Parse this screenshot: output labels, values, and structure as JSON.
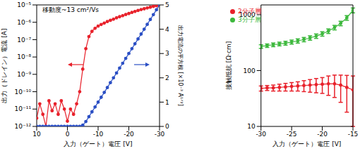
{
  "chart_data": [
    {
      "type": "line",
      "annotation": "移動度~13 cm²/Vs",
      "x_label": "入力（ゲート）電圧 [V]",
      "y_label": "出力（ドレイン）電流 [A]",
      "y2_label": "出力電流の平方根 [×10⁻³ A¹ᐟ²]",
      "log": "y",
      "x": [
        10,
        9,
        8,
        7,
        6,
        5,
        4,
        3,
        2,
        1,
        0,
        -1,
        -2,
        -3,
        -4,
        -5,
        -6,
        -7,
        -8,
        -9,
        -10,
        -11,
        -12,
        -13,
        -14,
        -15,
        -16,
        -17,
        -18,
        -19,
        -20,
        -21,
        -22,
        -23,
        -24,
        -25,
        -26,
        -27,
        -28,
        -29,
        -30
      ],
      "xlim": [
        10,
        -30
      ],
      "xticks": [
        10,
        0,
        -10,
        -20,
        -30
      ],
      "ylim": [
        1e-12,
        1e-05
      ],
      "yticks": [
        {
          "value": 1e-12,
          "label": "10⁻¹²"
        },
        {
          "value": 1e-11,
          "label": "10⁻¹¹"
        },
        {
          "value": 1e-10,
          "label": "10⁻¹⁰"
        },
        {
          "value": 1e-09,
          "label": "10⁻⁹"
        },
        {
          "value": 1e-08,
          "label": "10⁻⁸"
        },
        {
          "value": 1e-07,
          "label": "10⁻⁷"
        },
        {
          "value": 1e-06,
          "label": "10⁻⁶"
        },
        {
          "value": 1e-05,
          "label": "10⁻⁵"
        }
      ],
      "y2lim": [
        0,
        5
      ],
      "y2ticks": [
        0,
        1,
        2,
        3,
        4,
        5
      ],
      "series": [
        {
          "color": "#e8212b",
          "marker": "circle",
          "line_style": "solid",
          "values": [
            3e-12,
            2e-11,
            5e-12,
            1e-12,
            3e-11,
            8e-12,
            2e-11,
            5e-12,
            3e-11,
            1e-11,
            2e-12,
            1e-11,
            5e-12,
            2e-11,
            1e-10,
            2e-09,
            3e-08,
            1.5e-07,
            3e-07,
            4.5e-07,
            6e-07,
            7.5e-07,
            9e-07,
            1.1e-06,
            1.3e-06,
            1.5e-06,
            1.8e-06,
            2.1e-06,
            2.4e-06,
            2.8e-06,
            3.2e-06,
            3.7e-06,
            4.2e-06,
            4.8e-06,
            5.4e-06,
            6e-06,
            6.7e-06,
            7.4e-06,
            8.2e-06,
            9e-06,
            1e-05
          ]
        },
        {
          "color": "#2b4fc4",
          "marker": "circle",
          "line_style": "solid",
          "axis": "y2",
          "values": [
            0,
            0,
            0,
            0,
            0,
            0,
            0,
            0,
            0,
            0,
            0,
            0,
            0,
            0,
            0,
            0.05,
            0.2,
            0.4,
            0.6,
            0.8,
            1.0,
            1.2,
            1.4,
            1.6,
            1.8,
            2.0,
            2.2,
            2.4,
            2.6,
            2.8,
            3.0,
            3.2,
            3.4,
            3.6,
            3.8,
            4.0,
            4.2,
            4.4,
            4.6,
            4.8,
            5.0
          ]
        }
      ]
    },
    {
      "type": "line",
      "x_label": "入力（ゲート）電圧 [V]",
      "y_label": "接触抵抗 [Ω·cm]",
      "log": "y",
      "legend": "upper left",
      "x": [
        -30,
        -29,
        -28,
        -27,
        -26,
        -25,
        -24,
        -23,
        -22,
        -21,
        -20,
        -19,
        -18,
        -17,
        -16,
        -15
      ],
      "xlim": [
        -30,
        -15
      ],
      "xticks": [
        -30,
        -25,
        -20,
        -15
      ],
      "ylim": [
        10,
        1500
      ],
      "yticks": [
        10,
        100,
        1000
      ],
      "series": [
        {
          "name": "2分子層",
          "color": "#e8212b",
          "marker": "circle",
          "line_style": "solid",
          "values": [
            48,
            49,
            49,
            50,
            51,
            52,
            53,
            54,
            55,
            56,
            57,
            58,
            58,
            55,
            50,
            45
          ],
          "errors": [
            5,
            5,
            6,
            7,
            8,
            9,
            10,
            12,
            14,
            16,
            18,
            22,
            25,
            28,
            32,
            35
          ]
        },
        {
          "name": "3分子層",
          "color": "#3cb83c",
          "marker": "circle",
          "line_style": "solid",
          "values": [
            270,
            280,
            290,
            300,
            310,
            325,
            340,
            360,
            385,
            415,
            455,
            510,
            590,
            700,
            880,
            1200
          ],
          "errors": [
            20,
            20,
            22,
            23,
            25,
            27,
            30,
            32,
            35,
            38,
            42,
            48,
            55,
            65,
            85,
            120
          ]
        }
      ]
    }
  ]
}
